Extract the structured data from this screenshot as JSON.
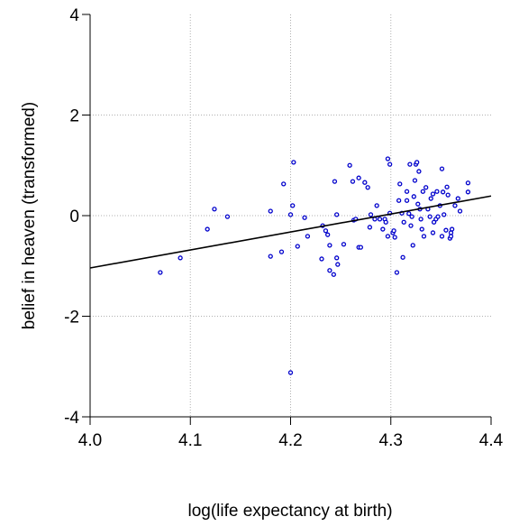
{
  "chart_data": {
    "type": "scatter",
    "xlabel": "log(life expectancy at birth)",
    "ylabel": "belief in heaven (transformed)",
    "xlim": [
      4.0,
      4.4
    ],
    "ylim": [
      -4,
      4
    ],
    "xticks": [
      {
        "value": 4,
        "label": "4.0"
      },
      4.1,
      4.2,
      4.3,
      4.4
    ],
    "yticks": [
      -4,
      -2,
      0,
      2,
      4
    ],
    "grid": true,
    "series": [
      {
        "color": "#0000cc",
        "x": [
          4.07,
          4.09,
          4.117,
          4.124,
          4.137,
          4.18,
          4.18,
          4.191,
          4.193,
          4.2,
          4.2,
          4.203,
          4.202,
          4.207,
          4.214,
          4.217,
          4.232,
          4.231,
          4.235,
          4.237,
          4.239,
          4.239,
          4.243,
          4.244,
          4.246,
          4.246,
          4.247,
          4.253,
          4.259,
          4.262,
          4.263,
          4.265,
          4.268,
          4.27,
          4.268,
          4.274,
          4.277,
          4.279,
          4.28,
          4.286,
          4.284,
          4.289,
          4.292,
          4.294,
          4.295,
          4.297,
          4.299,
          4.299,
          4.297,
          4.302,
          4.303,
          4.304,
          4.306,
          4.308,
          4.309,
          4.311,
          4.312,
          4.313,
          4.316,
          4.316,
          4.318,
          4.319,
          4.32,
          4.321,
          4.322,
          4.323,
          4.324,
          4.325,
          4.326,
          4.327,
          4.328,
          4.329,
          4.33,
          4.331,
          4.332,
          4.333,
          4.335,
          4.337,
          4.339,
          4.34,
          4.342,
          4.342,
          4.343,
          4.345,
          4.346,
          4.347,
          4.349,
          4.351,
          4.351,
          4.352,
          4.353,
          4.355,
          4.356,
          4.357,
          4.359,
          4.36,
          4.36,
          4.361,
          4.364,
          4.367,
          4.369,
          4.377,
          4.377
        ],
        "y": [
          -1.13,
          -0.84,
          -0.27,
          0.13,
          -0.02,
          0.09,
          -0.81,
          -0.72,
          0.63,
          0.02,
          -3.12,
          1.06,
          0.2,
          -0.61,
          -0.04,
          -0.41,
          -0.2,
          -0.86,
          -0.3,
          -0.38,
          -0.59,
          -1.09,
          -1.17,
          0.68,
          0.02,
          -0.84,
          -0.97,
          -0.57,
          1.0,
          0.68,
          -0.09,
          -0.07,
          -0.63,
          -0.63,
          0.75,
          0.66,
          0.56,
          -0.23,
          0.02,
          0.2,
          -0.07,
          -0.07,
          -0.27,
          -0.07,
          -0.13,
          1.13,
          1.02,
          0.05,
          -0.41,
          -0.34,
          -0.3,
          -0.43,
          -1.13,
          0.3,
          0.63,
          0.05,
          -0.83,
          -0.13,
          0.3,
          0.48,
          0.04,
          1.02,
          -0.2,
          -0.02,
          -0.59,
          0.38,
          0.7,
          1.02,
          1.06,
          0.23,
          0.88,
          0.13,
          -0.07,
          -0.27,
          0.48,
          -0.41,
          0.56,
          0.13,
          -0.02,
          0.34,
          -0.34,
          0.43,
          -0.13,
          -0.07,
          0.48,
          -0.02,
          0.2,
          -0.41,
          0.93,
          0.47,
          0.02,
          -0.29,
          0.57,
          0.41,
          -0.45,
          -0.34,
          -0.41,
          -0.27,
          0.2,
          0.34,
          0.09,
          0.65,
          0.47
        ]
      }
    ],
    "fit": {
      "color": "#000000",
      "x": [
        4.0,
        4.4
      ],
      "y": [
        -1.04,
        0.39
      ]
    }
  }
}
